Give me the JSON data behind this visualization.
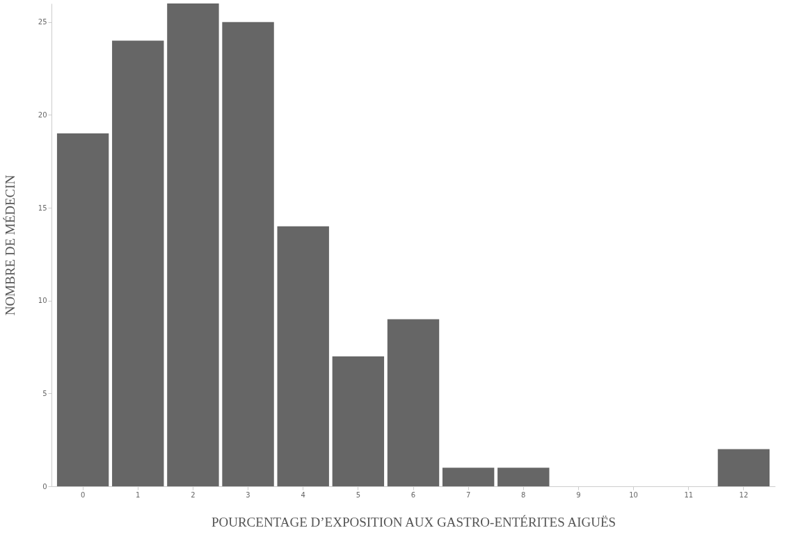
{
  "chart_data": {
    "type": "bar",
    "xlabel": "POURCENTAGE D’EXPOSITION AUX GASTRO-ENTÉRITES AIGUËS",
    "ylabel": "NOMBRE DE MÉDECIN",
    "categories": [
      "0",
      "1",
      "2",
      "3",
      "4",
      "5",
      "6",
      "7",
      "8",
      "9",
      "10",
      "11",
      "12"
    ],
    "values": [
      19,
      24,
      26,
      25,
      14,
      7,
      9,
      1,
      1,
      0,
      0,
      0,
      2
    ],
    "color": "#666666",
    "ylim": [
      0,
      26
    ],
    "yticks": [
      0,
      5,
      10,
      15,
      20,
      25
    ],
    "grid": false
  }
}
